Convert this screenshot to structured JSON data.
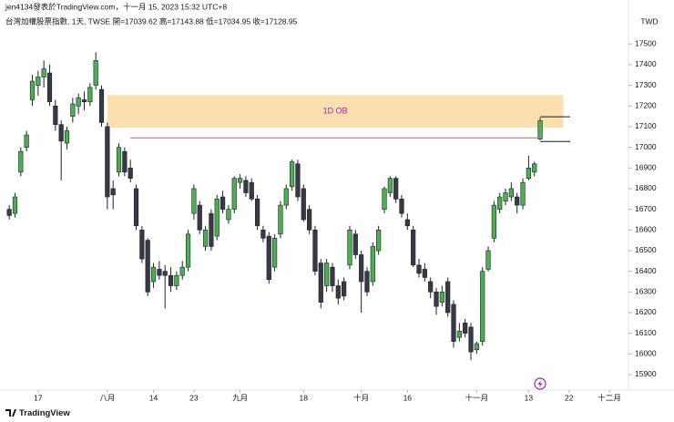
{
  "header": {
    "author_line": "jen4134發表於TradingView.com，十一月 15, 2023 15:32 UTC+8",
    "symbol_line": "台灣加權股票指數, 1天, TWSE  開=17039.62  高=17143.88  低=17034.95  收=17128.95"
  },
  "chart_data": {
    "type": "candlestick",
    "currency": "TWD",
    "up_color": "#4caf50",
    "down_color": "#363a45",
    "border_color": "#1e222d",
    "ylim": [
      15825,
      17660
    ],
    "yticks": [
      15900,
      16000,
      16100,
      16200,
      16300,
      16400,
      16500,
      16600,
      16700,
      16800,
      16900,
      17000,
      17100,
      17200,
      17300,
      17400,
      17500
    ],
    "xlim": [
      -1.6,
      107.3
    ],
    "xticks": [
      {
        "value": 5,
        "label": "17"
      },
      {
        "value": 17,
        "label": "八月"
      },
      {
        "value": 25,
        "label": "14"
      },
      {
        "value": 32,
        "label": "23"
      },
      {
        "value": 40,
        "label": "九月"
      },
      {
        "value": 51,
        "label": "18"
      },
      {
        "value": 61,
        "label": "十月"
      },
      {
        "value": 69,
        "label": "16"
      },
      {
        "value": 81,
        "label": "十一月"
      },
      {
        "value": 90,
        "label": "13"
      },
      {
        "value": 97,
        "label": "22"
      },
      {
        "value": 104,
        "label": "十二月"
      }
    ],
    "candles": [
      [
        16700,
        16720,
        16650,
        16670
      ],
      [
        16680,
        16780,
        16660,
        16760
      ],
      [
        16880,
        17000,
        16860,
        16980
      ],
      [
        17000,
        17080,
        16980,
        17060
      ],
      [
        17230,
        17350,
        17200,
        17320
      ],
      [
        17300,
        17370,
        17250,
        17340
      ],
      [
        17340,
        17420,
        17290,
        17380
      ],
      [
        17360,
        17400,
        17200,
        17220
      ],
      [
        17200,
        17230,
        17080,
        17110
      ],
      [
        17110,
        17130,
        16840,
        17030
      ],
      [
        17020,
        17100,
        16990,
        17080
      ],
      [
        17150,
        17240,
        17120,
        17210
      ],
      [
        17200,
        17260,
        17160,
        17240
      ],
      [
        17230,
        17270,
        17180,
        17220
      ],
      [
        17220,
        17310,
        17200,
        17290
      ],
      [
        17300,
        17460,
        17280,
        17420
      ],
      [
        17280,
        17300,
        17100,
        17120
      ],
      [
        17100,
        17120,
        16700,
        16760
      ],
      [
        16800,
        16840,
        16700,
        16770
      ],
      [
        16880,
        17020,
        16860,
        17000
      ],
      [
        16980,
        17000,
        16860,
        16880
      ],
      [
        16900,
        16940,
        16830,
        16850
      ],
      [
        16800,
        16820,
        16600,
        16620
      ],
      [
        16600,
        16620,
        16440,
        16460
      ],
      [
        16550,
        16560,
        16280,
        16300
      ],
      [
        16350,
        16440,
        16320,
        16420
      ],
      [
        16410,
        16450,
        16360,
        16380
      ],
      [
        16400,
        16430,
        16220,
        16380
      ],
      [
        16380,
        16420,
        16300,
        16330
      ],
      [
        16330,
        16400,
        16310,
        16380
      ],
      [
        16380,
        16450,
        16360,
        16420
      ],
      [
        16420,
        16600,
        16400,
        16580
      ],
      [
        16680,
        16820,
        16650,
        16800
      ],
      [
        16720,
        16740,
        16580,
        16600
      ],
      [
        16520,
        16620,
        16500,
        16600
      ],
      [
        16680,
        16700,
        16500,
        16520
      ],
      [
        16570,
        16770,
        16550,
        16750
      ],
      [
        16760,
        16790,
        16680,
        16700
      ],
      [
        16650,
        16720,
        16630,
        16700
      ],
      [
        16700,
        16860,
        16680,
        16850
      ],
      [
        16830,
        16870,
        16800,
        16850
      ],
      [
        16840,
        16860,
        16760,
        16780
      ],
      [
        16830,
        16850,
        16740,
        16750
      ],
      [
        16750,
        16770,
        16600,
        16620
      ],
      [
        16600,
        16620,
        16540,
        16560
      ],
      [
        16570,
        16590,
        16340,
        16360
      ],
      [
        16420,
        16580,
        16400,
        16560
      ],
      [
        16580,
        16740,
        16560,
        16720
      ],
      [
        16720,
        16820,
        16700,
        16800
      ],
      [
        16810,
        16940,
        16790,
        16930
      ],
      [
        16920,
        16940,
        16740,
        16760
      ],
      [
        16800,
        16820,
        16640,
        16650
      ],
      [
        16700,
        16720,
        16580,
        16600
      ],
      [
        16600,
        16620,
        16380,
        16400
      ],
      [
        16440,
        16460,
        16220,
        16250
      ],
      [
        16330,
        16460,
        16300,
        16440
      ],
      [
        16420,
        16440,
        16300,
        16330
      ],
      [
        16330,
        16360,
        16240,
        16270
      ],
      [
        16350,
        16370,
        16260,
        16280
      ],
      [
        16430,
        16620,
        16410,
        16600
      ],
      [
        16580,
        16600,
        16460,
        16480
      ],
      [
        16480,
        16500,
        16200,
        16350
      ],
      [
        16400,
        16420,
        16280,
        16300
      ],
      [
        16350,
        16540,
        16330,
        16520
      ],
      [
        16500,
        16620,
        16480,
        16600
      ],
      [
        16700,
        16810,
        16680,
        16800
      ],
      [
        16780,
        16860,
        16760,
        16850
      ],
      [
        16850,
        16860,
        16730,
        16750
      ],
      [
        16750,
        16770,
        16660,
        16680
      ],
      [
        16650,
        16680,
        16600,
        16620
      ],
      [
        16600,
        16620,
        16420,
        16430
      ],
      [
        16430,
        16460,
        16370,
        16390
      ],
      [
        16410,
        16440,
        16350,
        16370
      ],
      [
        16350,
        16370,
        16270,
        16300
      ],
      [
        16300,
        16320,
        16190,
        16230
      ],
      [
        16250,
        16330,
        16230,
        16300
      ],
      [
        16350,
        16370,
        16180,
        16200
      ],
      [
        16240,
        16260,
        16030,
        16060
      ],
      [
        16080,
        16150,
        16060,
        16110
      ],
      [
        16150,
        16170,
        16080,
        16100
      ],
      [
        16130,
        16150,
        15970,
        16010
      ],
      [
        16020,
        16060,
        16000,
        16050
      ],
      [
        16060,
        16420,
        16040,
        16400
      ],
      [
        16410,
        16520,
        16400,
        16500
      ],
      [
        16560,
        16740,
        16540,
        16720
      ],
      [
        16700,
        16780,
        16680,
        16760
      ],
      [
        16740,
        16800,
        16720,
        16780
      ],
      [
        16760,
        16830,
        16740,
        16800
      ],
      [
        16760,
        16780,
        16680,
        16720
      ],
      [
        16720,
        16850,
        16700,
        16830
      ],
      [
        16850,
        16960,
        16840,
        16900
      ],
      [
        16880,
        16930,
        16860,
        16920
      ],
      [
        17039.62,
        17143.88,
        17034.95,
        17128.95
      ]
    ],
    "zone": {
      "label": "1D OB",
      "range": [
        17095,
        17253
      ],
      "x": [
        17,
        96
      ],
      "color": "#fbdfae",
      "label_color": "#9c27b0"
    },
    "levels": [
      {
        "value": 17046,
        "x": [
          21,
          91.5
        ],
        "color": "#e05555"
      },
      {
        "value": 17148,
        "x": [
          92,
          97.2
        ],
        "color": "#131722"
      },
      {
        "value": 17028,
        "x": [
          92,
          97.2
        ],
        "color": "#131722"
      }
    ]
  }
}
